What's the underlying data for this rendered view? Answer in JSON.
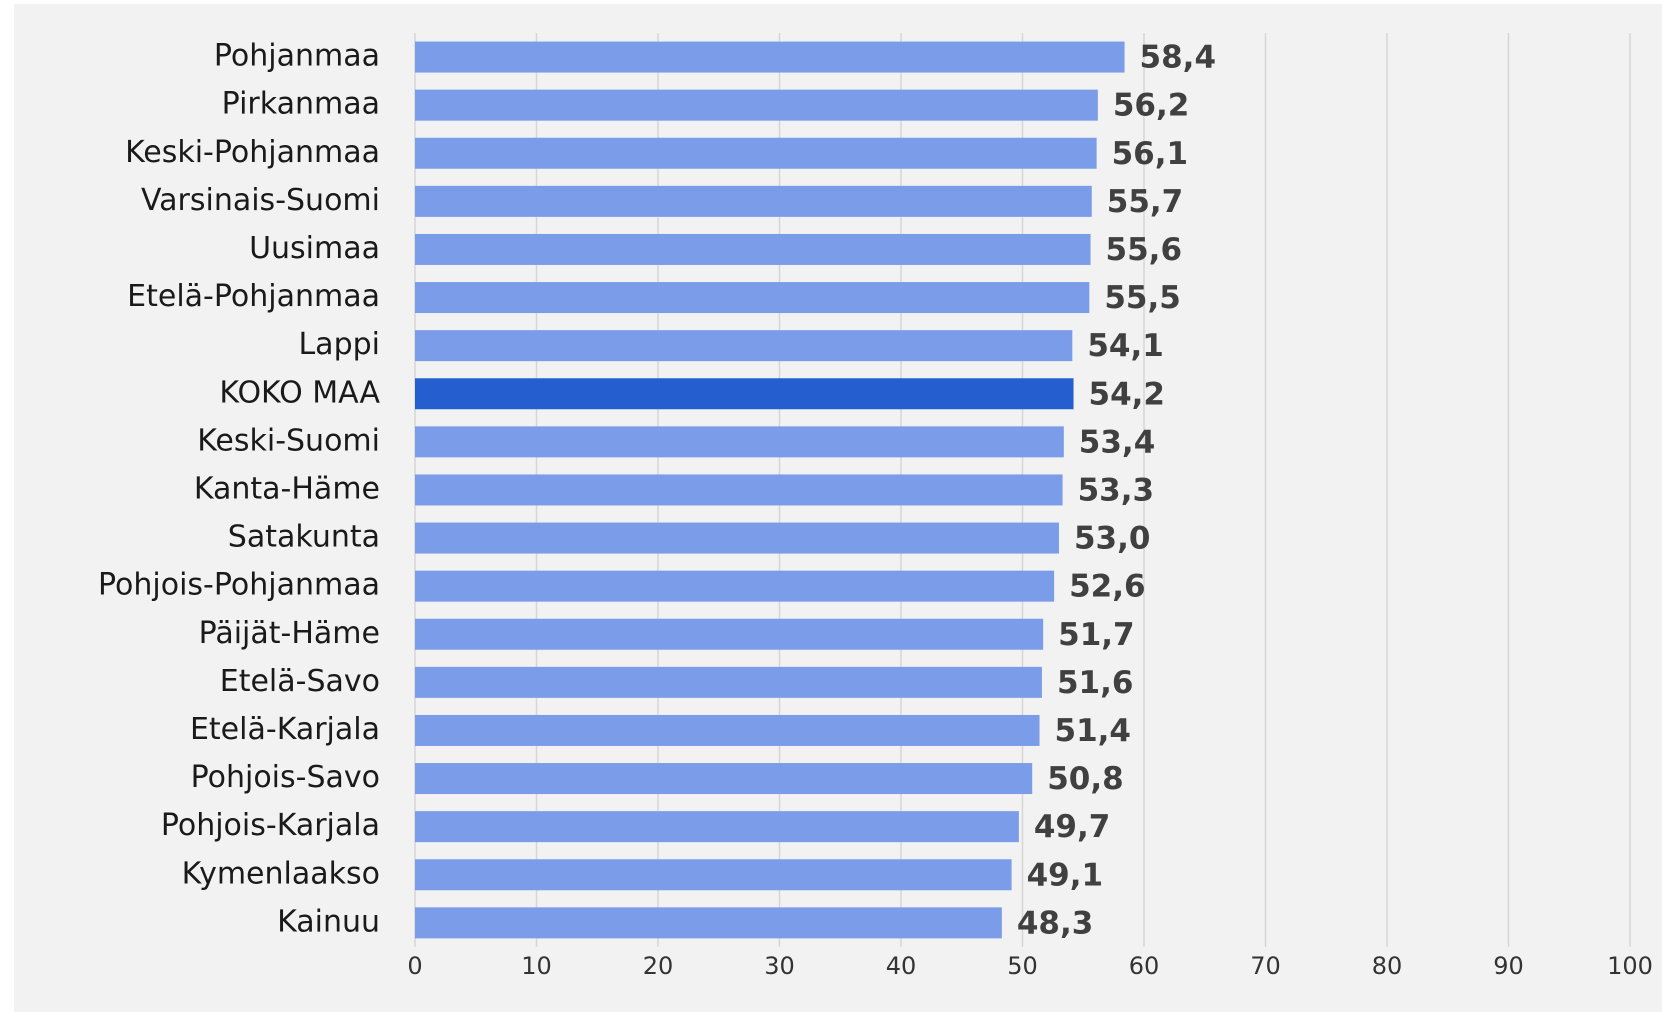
{
  "chart_data": {
    "type": "bar",
    "orientation": "horizontal",
    "categories": [
      "Pohjanmaa",
      "Pirkanmaa",
      "Keski-Pohjanmaa",
      "Varsinais-Suomi",
      "Uusimaa",
      "Etelä-Pohjanmaa",
      "Lappi",
      "KOKO MAA",
      "Keski-Suomi",
      "Kanta-Häme",
      "Satakunta",
      "Pohjois-Pohjanmaa",
      "Päijät-Häme",
      "Etelä-Savo",
      "Etelä-Karjala",
      "Pohjois-Savo",
      "Pohjois-Karjala",
      "Kymenlaakso",
      "Kainuu"
    ],
    "values": [
      58.4,
      56.2,
      56.1,
      55.7,
      55.6,
      55.5,
      54.1,
      54.2,
      53.4,
      53.3,
      53.0,
      52.6,
      51.7,
      51.6,
      51.4,
      50.8,
      49.7,
      49.1,
      48.3
    ],
    "value_labels": [
      "58,4",
      "56,2",
      "56,1",
      "55,7",
      "55,6",
      "55,5",
      "54,1",
      "54,2",
      "53,4",
      "53,3",
      "53,0",
      "52,6",
      "51,7",
      "51,6",
      "51,4",
      "50,8",
      "49,7",
      "49,1",
      "48,3"
    ],
    "colors": [
      "#7b9ce8",
      "#7b9ce8",
      "#7b9ce8",
      "#7b9ce8",
      "#7b9ce8",
      "#7b9ce8",
      "#7b9ce8",
      "#255ecf",
      "#7b9ce8",
      "#7b9ce8",
      "#7b9ce8",
      "#7b9ce8",
      "#7b9ce8",
      "#7b9ce8",
      "#7b9ce8",
      "#7b9ce8",
      "#7b9ce8",
      "#7b9ce8",
      "#7b9ce8"
    ],
    "xlim": [
      0,
      100
    ],
    "xticks": [
      0,
      10,
      20,
      30,
      40,
      50,
      60,
      70,
      80,
      90,
      100
    ],
    "grid": true
  }
}
